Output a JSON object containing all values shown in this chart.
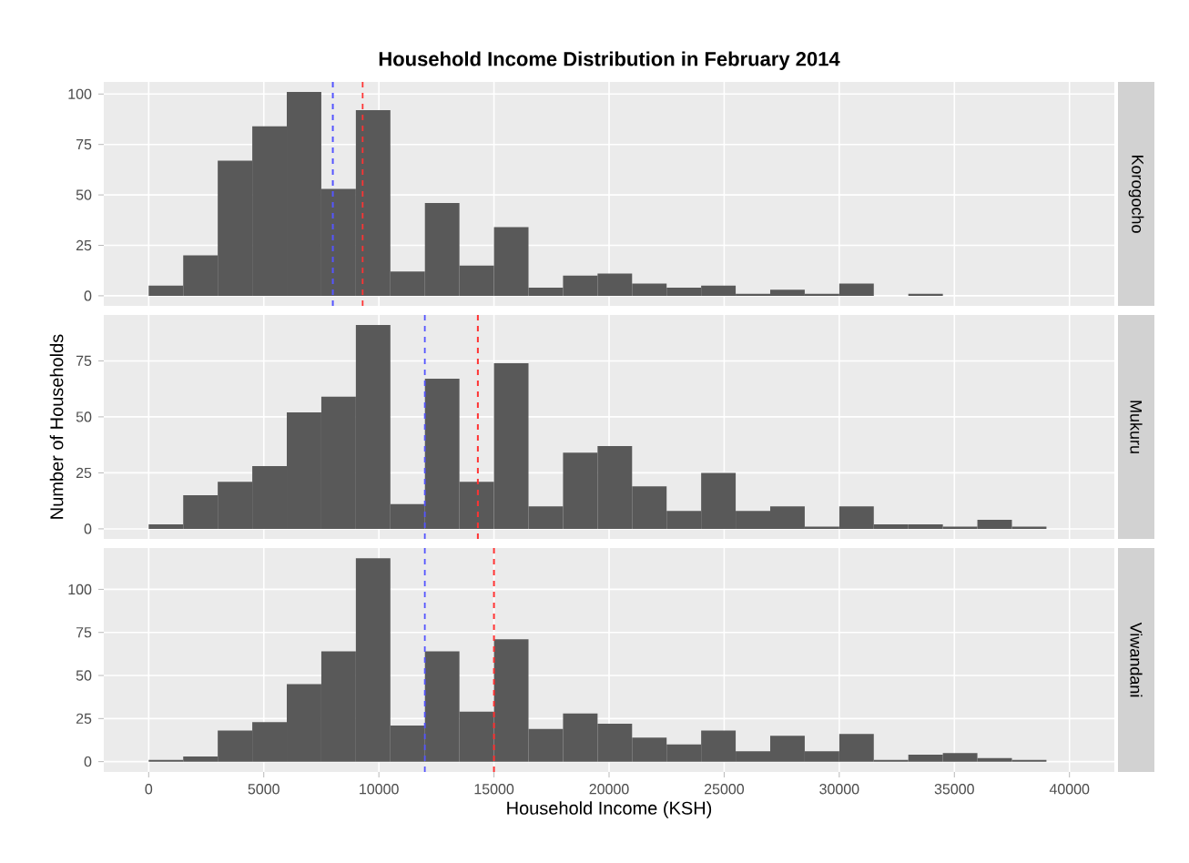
{
  "chart_data": [
    {
      "type": "histogram",
      "title": "Household Income Distribution in February 2014",
      "annotations": [
        "Korogocho"
      ],
      "color": "#595959",
      "bins": [
        0,
        1500,
        3000,
        4500,
        6000,
        7500,
        9000,
        10500,
        12000,
        13500,
        15000,
        16500,
        18000,
        19500,
        21000,
        22500,
        24000,
        25500,
        27000,
        28500,
        30000,
        31500,
        33000,
        34500,
        36000,
        37500,
        39000
      ],
      "values": [
        5,
        20,
        67,
        84,
        101,
        53,
        92,
        12,
        46,
        15,
        34,
        4,
        10,
        11,
        6,
        4,
        5,
        1,
        3,
        1,
        6,
        0,
        1,
        0,
        0,
        0
      ],
      "xlim": [
        -1950,
        41950
      ],
      "ylim": [
        -5,
        106
      ],
      "xticks": [
        0,
        5000,
        10000,
        15000,
        20000,
        25000,
        30000,
        35000,
        40000
      ],
      "yticks": [
        0,
        25,
        50,
        75,
        100
      ],
      "ref_lines": [
        {
          "axis": "x",
          "value": 8000,
          "color": "#5555ff",
          "line_style": "dashed"
        },
        {
          "axis": "x",
          "value": 9300,
          "color": "#ff3333",
          "line_style": "dashed"
        }
      ],
      "grid": true,
      "tick_labels": "y"
    },
    {
      "type": "histogram",
      "ylabel": "Number of Households",
      "annotations": [
        "Mukuru"
      ],
      "color": "#595959",
      "bins": [
        0,
        1500,
        3000,
        4500,
        6000,
        7500,
        9000,
        10500,
        12000,
        13500,
        15000,
        16500,
        18000,
        19500,
        21000,
        22500,
        24000,
        25500,
        27000,
        28500,
        30000,
        31500,
        33000,
        34500,
        36000,
        37500,
        39000
      ],
      "values": [
        2,
        15,
        21,
        28,
        52,
        59,
        91,
        11,
        67,
        21,
        74,
        10,
        34,
        37,
        19,
        8,
        25,
        8,
        10,
        1,
        10,
        2,
        2,
        1,
        4,
        1
      ],
      "xlim": [
        -1950,
        41950
      ],
      "ylim": [
        -4.5,
        95.5
      ],
      "xticks": [
        0,
        5000,
        10000,
        15000,
        20000,
        25000,
        30000,
        35000,
        40000
      ],
      "yticks": [
        0,
        25,
        50,
        75
      ],
      "ref_lines": [
        {
          "axis": "x",
          "value": 12000,
          "color": "#5555ff",
          "line_style": "dashed"
        },
        {
          "axis": "x",
          "value": 14300,
          "color": "#ff3333",
          "line_style": "dashed"
        }
      ],
      "grid": true,
      "tick_labels": "y"
    },
    {
      "type": "histogram",
      "xlabel": "Household Income (KSH)",
      "annotations": [
        "Viwandani"
      ],
      "color": "#595959",
      "bins": [
        0,
        1500,
        3000,
        4500,
        6000,
        7500,
        9000,
        10500,
        12000,
        13500,
        15000,
        16500,
        18000,
        19500,
        21000,
        22500,
        24000,
        25500,
        27000,
        28500,
        30000,
        31500,
        33000,
        34500,
        36000,
        37500,
        39000
      ],
      "values": [
        1,
        3,
        18,
        23,
        45,
        64,
        118,
        21,
        64,
        29,
        71,
        19,
        28,
        22,
        14,
        10,
        18,
        6,
        15,
        6,
        16,
        1,
        4,
        5,
        2,
        1
      ],
      "xlim": [
        -1950,
        41950
      ],
      "ylim": [
        -6,
        124
      ],
      "xticks": [
        0,
        5000,
        10000,
        15000,
        20000,
        25000,
        30000,
        35000,
        40000
      ],
      "yticks": [
        0,
        25,
        50,
        75,
        100
      ],
      "ref_lines": [
        {
          "axis": "x",
          "value": 12000,
          "color": "#5555ff",
          "line_style": "dashed"
        },
        {
          "axis": "x",
          "value": 15000,
          "color": "#ff3333",
          "line_style": "dashed"
        }
      ],
      "grid": true
    }
  ]
}
